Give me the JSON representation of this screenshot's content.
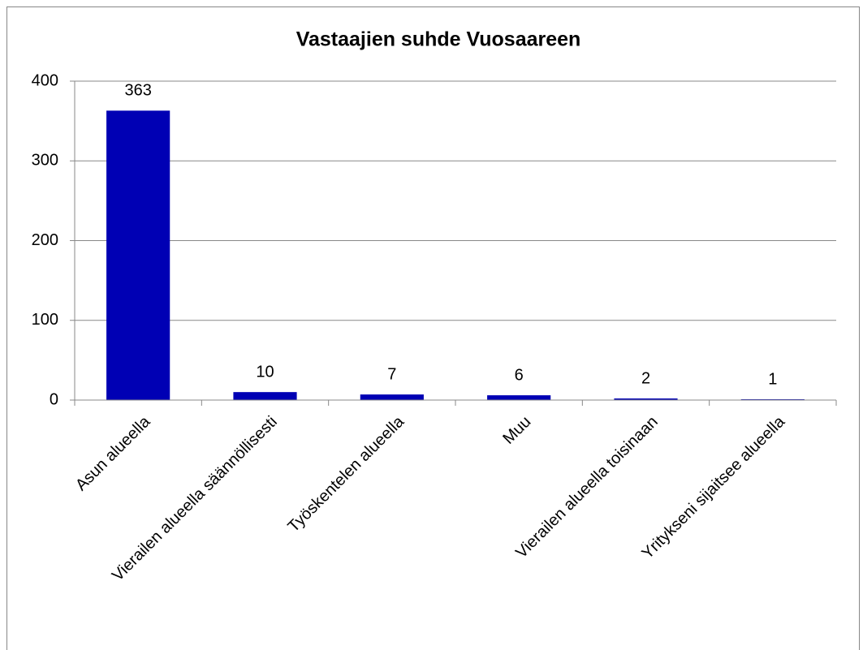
{
  "chart_data": {
    "type": "bar",
    "title": "Vastaajien suhde Vuosaareen",
    "categories": [
      "Asun alueella",
      "Vierailen alueella säännöllisesti",
      "Työskentelen alueella",
      "Muu",
      "Vierailen alueella toisinaan",
      "Yritykseni sijaitsee alueella"
    ],
    "values": [
      363,
      10,
      7,
      6,
      2,
      1
    ],
    "color": "#0000b4",
    "ylim": [
      0,
      400
    ],
    "yticks": [
      0,
      100,
      200,
      300,
      400
    ],
    "grid": true
  }
}
